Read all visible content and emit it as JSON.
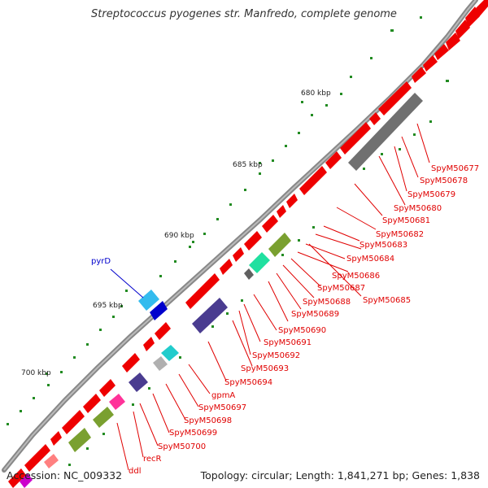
{
  "title": "Streptococcus pyogenes str. Manfredo, complete genome",
  "accession_text": "Accession: NC_009332",
  "summary_text": "Topology: circular; Length: 1,841,271 bp; Genes: 1,838",
  "colors": {
    "forward_cds": "#ee0000",
    "backbone": "#808080",
    "pyr_label": "#0000cc",
    "gene_label": "#e00000",
    "tick": "#228b22"
  },
  "position_labels": [
    "680 kbp",
    "685 kbp",
    "690 kbp",
    "695 kbp",
    "700 kbp"
  ],
  "blue_label": "pyrD",
  "gene_labels": [
    "SpyM50677",
    "SpyM50678",
    "SpyM50679",
    "SpyM50680",
    "SpyM50681",
    "SpyM50682",
    "SpyM50683",
    "SpyM50684",
    "SpyM50686",
    "SpyM50687",
    "SpyM50685",
    "SpyM50688",
    "SpyM50689",
    "SpyM50690",
    "SpyM50691",
    "SpyM50692",
    "SpyM50693",
    "SpyM50694",
    "gpmA",
    "SpyM50697",
    "SpyM50698",
    "SpyM50699",
    "SpyM50700",
    "recR",
    "ddl"
  ]
}
